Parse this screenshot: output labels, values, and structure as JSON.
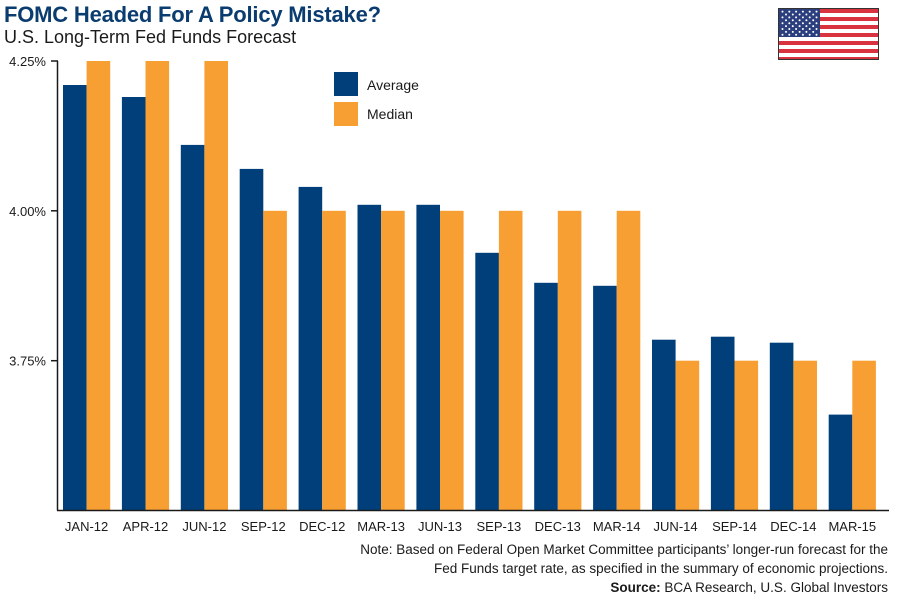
{
  "header": {
    "title": "FOMC Headed For A Policy Mistake?",
    "subtitle": "U.S. Long-Term Fed Funds Forecast",
    "flag_icon": "us-flag-icon"
  },
  "colors": {
    "average": "#003f7a",
    "median": "#f89f33",
    "title": "#0b3c70",
    "axis": "#1a1a1a"
  },
  "chart_data": {
    "type": "bar",
    "title": "FOMC Headed For A Policy Mistake?",
    "subtitle": "U.S. Long-Term Fed Funds Forecast",
    "xlabel": "",
    "ylabel": "",
    "ylim": [
      3.5,
      4.25
    ],
    "yticks": [
      {
        "value": 4.25,
        "label": "4.25%"
      },
      {
        "value": 4.0,
        "label": "4.00%"
      },
      {
        "value": 3.75,
        "label": "3.75%"
      }
    ],
    "grid": false,
    "legend_position": "top-center",
    "categories": [
      "JAN-12",
      "APR-12",
      "JUN-12",
      "SEP-12",
      "DEC-12",
      "MAR-13",
      "JUN-13",
      "SEP-13",
      "DEC-13",
      "MAR-14",
      "JUN-14",
      "SEP-14",
      "DEC-14",
      "MAR-15"
    ],
    "series": [
      {
        "name": "Average",
        "values": [
          4.21,
          4.19,
          4.11,
          4.07,
          4.04,
          4.01,
          4.01,
          3.93,
          3.88,
          3.875,
          3.785,
          3.79,
          3.78,
          3.66
        ]
      },
      {
        "name": "Median",
        "values": [
          4.25,
          4.25,
          4.25,
          4.0,
          4.0,
          4.0,
          4.0,
          4.0,
          4.0,
          4.0,
          3.75,
          3.75,
          3.75,
          3.75
        ]
      }
    ]
  },
  "footer": {
    "note_line1": "Note: Based on Federal Open Market Committee participants’ longer-run forecast for the",
    "note_line2": "Fed Funds target rate, as specified in the summary of economic projections.",
    "source_label": "Source:",
    "source_text": " BCA Research, U.S. Global Investors"
  }
}
